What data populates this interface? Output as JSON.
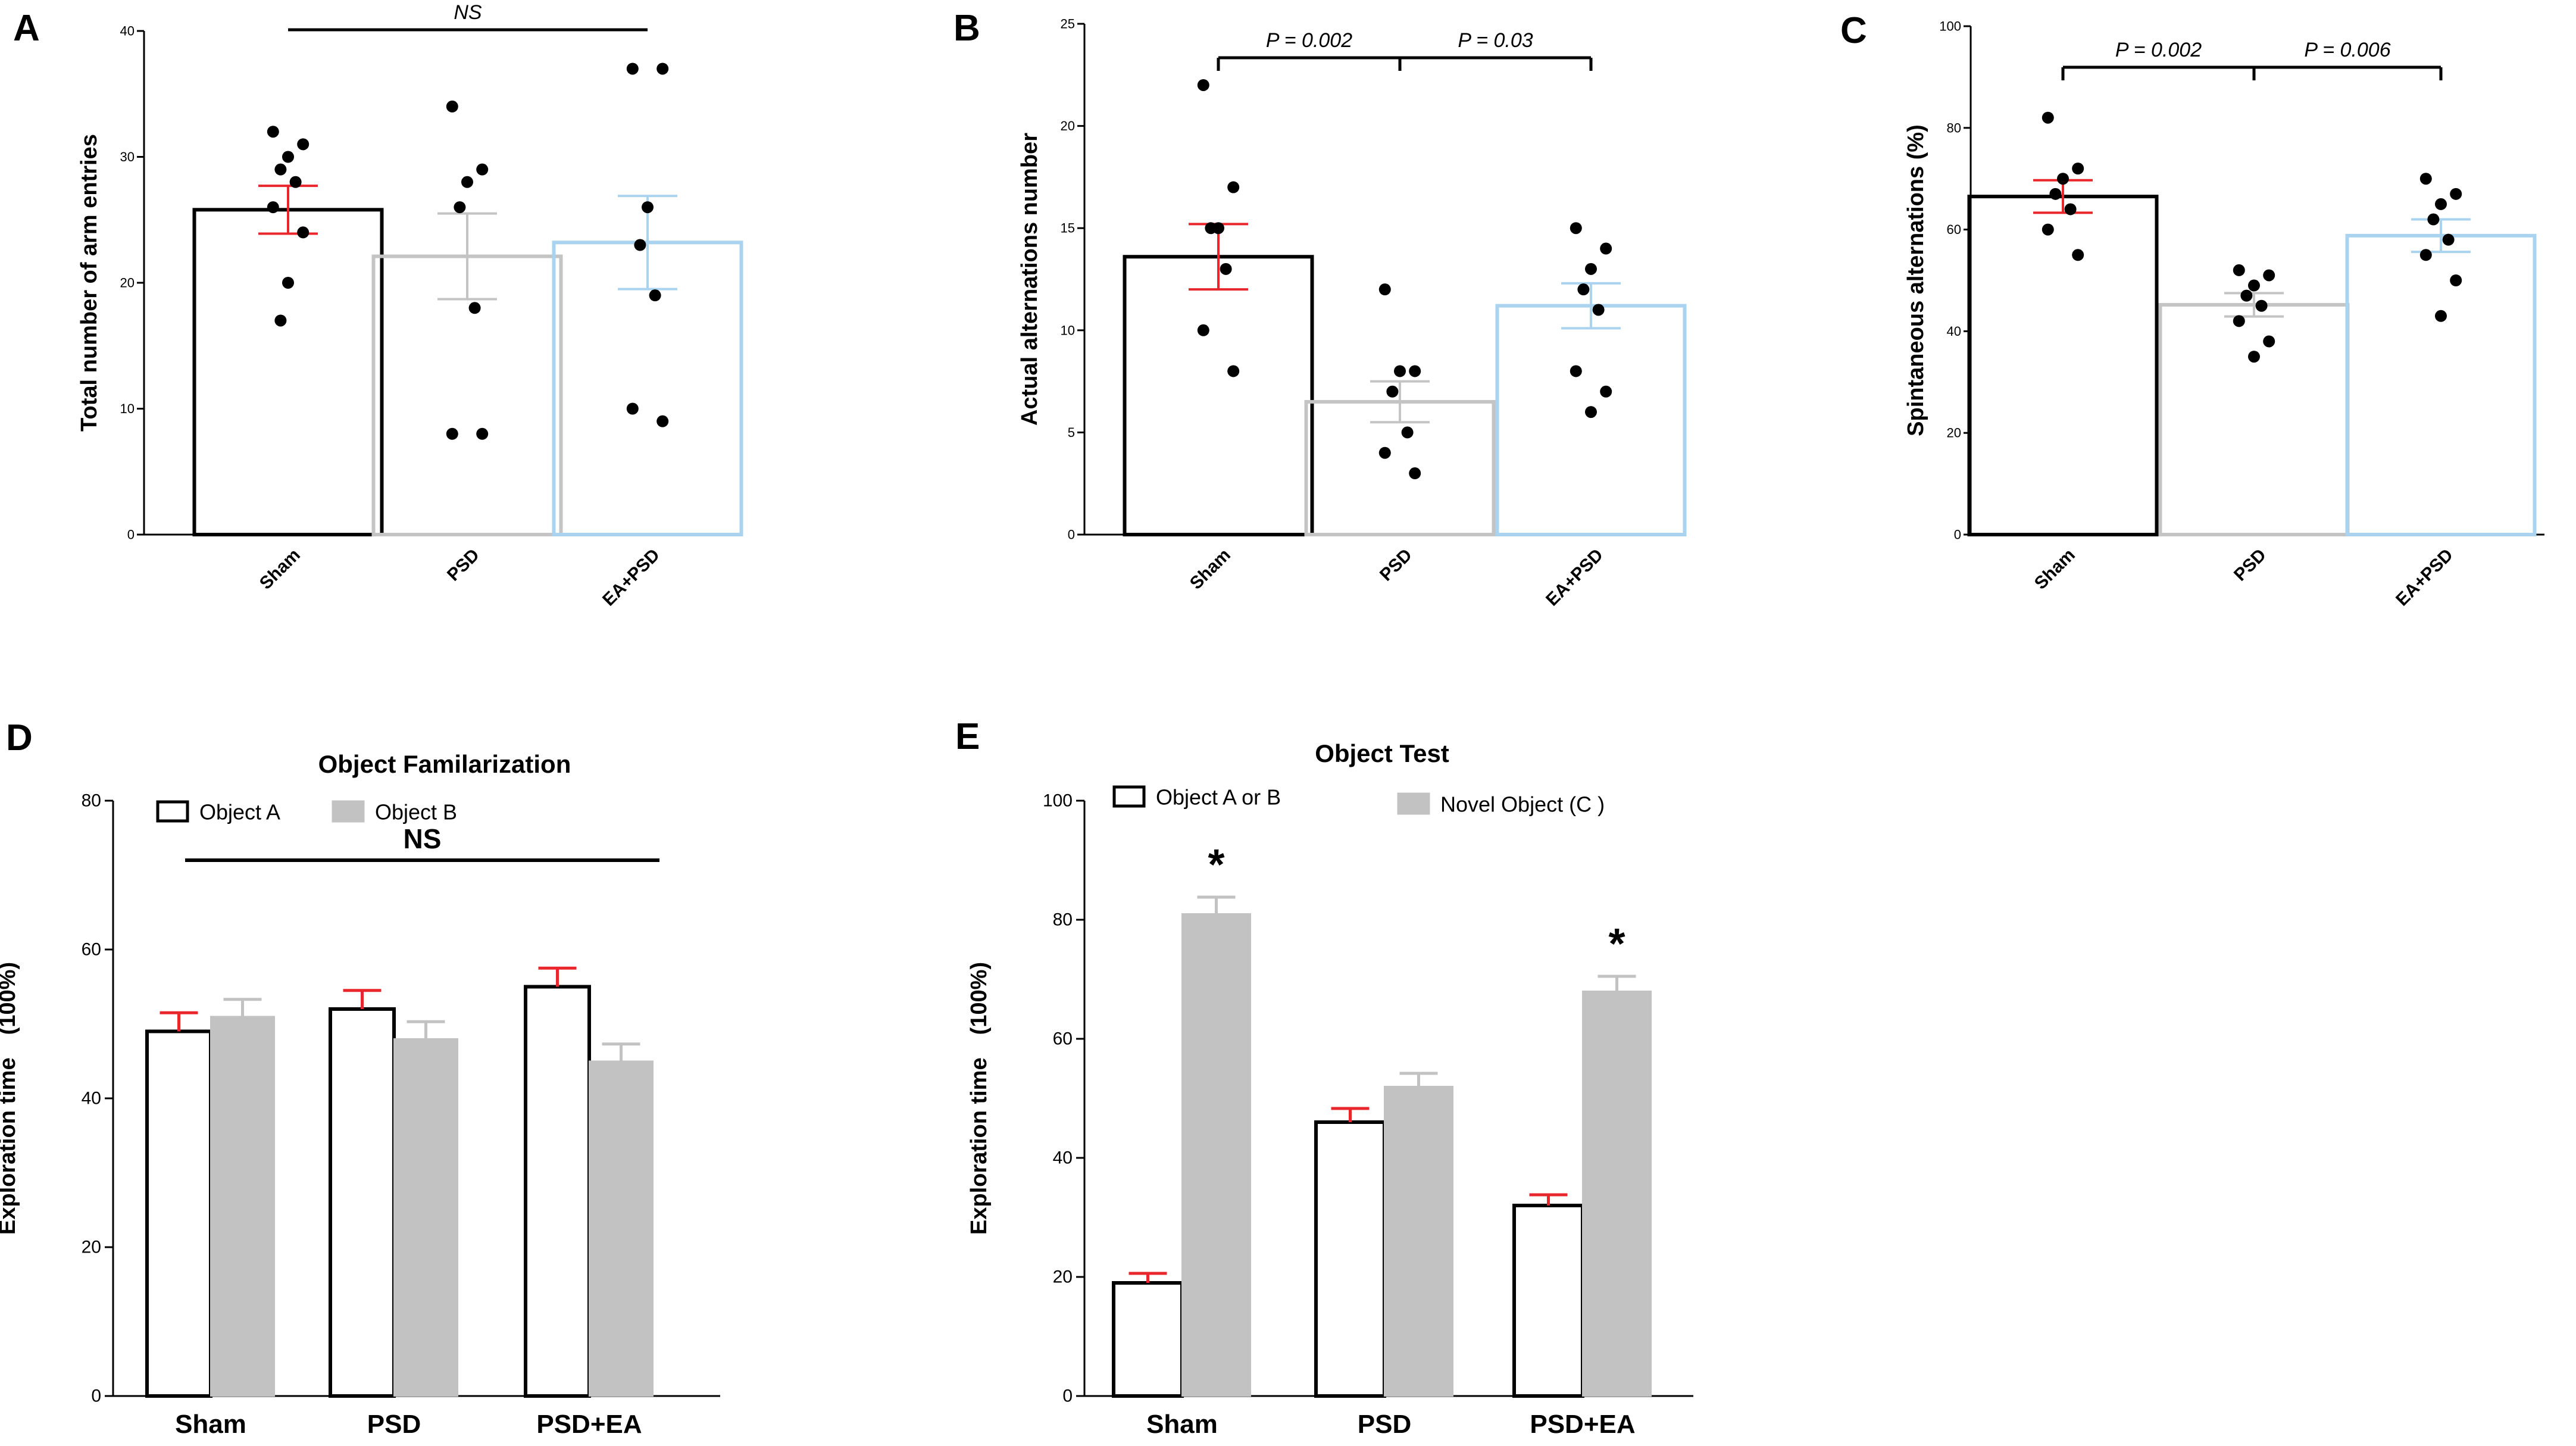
{
  "chart_data": [
    {
      "panel": "A",
      "type": "bar",
      "categories": [
        "Sham",
        "PSD",
        "EA+PSD"
      ],
      "colors": [
        "#000000",
        "#c4c4c4",
        "#a9d3ef"
      ],
      "errcolors": [
        "#e8262b",
        "#c4c4c4",
        "#a9d3ef"
      ],
      "means": [
        25.8,
        22.1,
        23.2
      ],
      "sem": [
        1.9,
        3.4,
        3.7
      ],
      "points": [
        [
          32,
          31,
          30,
          29,
          28,
          26,
          24,
          20,
          17
        ],
        [
          34,
          29,
          28,
          26,
          18,
          8,
          8
        ],
        [
          37,
          37,
          26,
          23,
          19,
          10,
          9
        ]
      ],
      "ylabel": "Total number of arm entries",
      "ylim": [
        0,
        40
      ],
      "yticks": [
        "0",
        "10",
        "20",
        "30",
        "40"
      ],
      "annotations": [
        {
          "text": "NS",
          "from": 0,
          "to": 2
        }
      ]
    },
    {
      "panel": "B",
      "type": "bar",
      "categories": [
        "Sham",
        "PSD",
        "EA+PSD"
      ],
      "colors": [
        "#000000",
        "#c4c4c4",
        "#a9d3ef"
      ],
      "errcolors": [
        "#e8262b",
        "#c4c4c4",
        "#a9d3ef"
      ],
      "means": [
        13.6,
        6.5,
        11.2
      ],
      "sem": [
        1.6,
        1.0,
        1.1
      ],
      "points": [
        [
          22,
          17,
          15,
          15,
          13,
          10,
          8
        ],
        [
          12,
          8,
          8,
          7,
          5,
          4,
          3
        ],
        [
          15,
          14,
          13,
          12,
          11,
          8,
          7,
          6
        ]
      ],
      "ylabel": "Actual alternations number",
      "ylim": [
        0,
        25
      ],
      "yticks": [
        "0",
        "5",
        "10",
        "15",
        "20",
        "25"
      ],
      "annotations": [
        {
          "text": "P = 0.002",
          "from": 0,
          "to": 1
        },
        {
          "text": "P = 0.03",
          "from": 1,
          "to": 2
        }
      ]
    },
    {
      "panel": "C",
      "type": "bar",
      "categories": [
        "Sham",
        "PSD",
        "EA+PSD"
      ],
      "colors": [
        "#000000",
        "#c4c4c4",
        "#a9d3ef"
      ],
      "errcolors": [
        "#e8262b",
        "#c4c4c4",
        "#a9d3ef"
      ],
      "means": [
        66.5,
        45.2,
        58.8
      ],
      "sem": [
        3.2,
        2.3,
        3.2
      ],
      "points": [
        [
          82,
          72,
          70,
          67,
          64,
          60,
          55
        ],
        [
          52,
          51,
          49,
          47,
          45,
          42,
          38,
          35
        ],
        [
          70,
          67,
          65,
          62,
          58,
          55,
          50,
          43
        ]
      ],
      "ylabel": "Spintaneous alternations (%)",
      "ylim": [
        0,
        100
      ],
      "yticks": [
        "0",
        "20",
        "40",
        "60",
        "80",
        "100"
      ],
      "annotations": [
        {
          "text": "P = 0.002",
          "from": 0,
          "to": 1
        },
        {
          "text": "P = 0.006",
          "from": 1,
          "to": 2
        }
      ]
    },
    {
      "panel": "D",
      "type": "bar",
      "title": "Object Familarization",
      "categories": [
        "Sham",
        "PSD",
        "PSD+EA"
      ],
      "series": [
        {
          "name": "Object A",
          "values": [
            49,
            52,
            55
          ],
          "sem": [
            2.5,
            2.5,
            2.5
          ],
          "fill": "#ffffff",
          "stroke": "#000000",
          "err": "#e8262b"
        },
        {
          "name": "Object B",
          "values": [
            51,
            48,
            45
          ],
          "sem": [
            2.3,
            2.3,
            2.3
          ],
          "fill": "#c2c2c2",
          "stroke": "#c2c2c2",
          "err": "#c2c2c2"
        }
      ],
      "ylabel": "Exploration time　(100%)",
      "ylim": [
        0,
        80
      ],
      "yticks": [
        "0",
        "20",
        "40",
        "60",
        "80"
      ],
      "ns_text": "NS"
    },
    {
      "panel": "E",
      "type": "bar",
      "title": "Object Test",
      "categories": [
        "Sham",
        "PSD",
        "PSD+EA"
      ],
      "series": [
        {
          "name": "Object A or B",
          "values": [
            19,
            46,
            32
          ],
          "sem": [
            1.6,
            2.3,
            1.8
          ],
          "fill": "#ffffff",
          "stroke": "#000000",
          "err": "#e8262b"
        },
        {
          "name": "Novel Object (C )",
          "values": [
            81,
            52,
            68
          ],
          "sem": [
            2.8,
            2.2,
            2.5
          ],
          "fill": "#c2c2c2",
          "stroke": "#c2c2c2",
          "err": "#c2c2c2"
        }
      ],
      "ylabel": "Exploration time　(100%)",
      "ylim": [
        0,
        100
      ],
      "yticks": [
        "0",
        "20",
        "40",
        "60",
        "80",
        "100"
      ],
      "stars": [
        {
          "cat": 0,
          "text": "*"
        },
        {
          "cat": 2,
          "text": "*"
        }
      ]
    }
  ]
}
